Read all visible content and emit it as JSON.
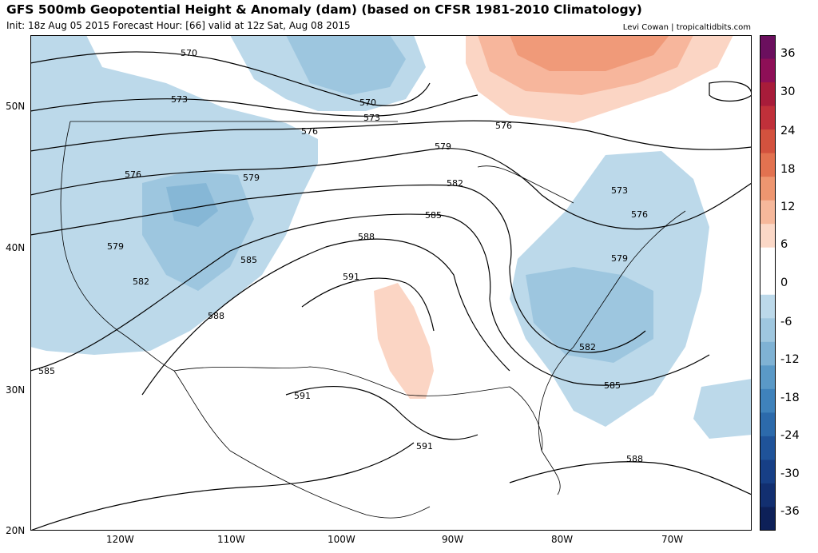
{
  "header": {
    "title": "GFS 500mb Geopotential Height & Anomaly (dam) (based on CFSR 1981-2010 Climatology)",
    "subtitle": "Init: 18z Aug 05 2015   Forecast Hour: [66]   valid at 12z Sat, Aug 08 2015",
    "credit": "Levi Cowan | tropicaltidbits.com"
  },
  "map": {
    "lat_labels": [
      "50N",
      "40N",
      "30N",
      "20N"
    ],
    "lon_labels": [
      "120W",
      "110W",
      "100W",
      "90W",
      "80W",
      "70W"
    ],
    "contour_labels": [
      {
        "text": "570"
      },
      {
        "text": "570"
      },
      {
        "text": "573"
      },
      {
        "text": "573"
      },
      {
        "text": "573"
      },
      {
        "text": "576"
      },
      {
        "text": "576"
      },
      {
        "text": "576"
      },
      {
        "text": "576"
      },
      {
        "text": "579"
      },
      {
        "text": "579"
      },
      {
        "text": "579"
      },
      {
        "text": "579"
      },
      {
        "text": "582"
      },
      {
        "text": "582"
      },
      {
        "text": "582"
      },
      {
        "text": "585"
      },
      {
        "text": "585"
      },
      {
        "text": "585"
      },
      {
        "text": "585"
      },
      {
        "text": "588"
      },
      {
        "text": "588"
      },
      {
        "text": "588"
      },
      {
        "text": "591"
      },
      {
        "text": "591"
      },
      {
        "text": "591"
      }
    ],
    "anomaly_colors": {
      "neg1": "#bcd9ea",
      "neg2": "#9dc6df",
      "neg3": "#86b7d6",
      "pos1": "#fbd5c4",
      "pos2": "#f7b69c",
      "pos3": "#f09a79"
    }
  },
  "colorbar": {
    "labels": [
      "36",
      "30",
      "24",
      "18",
      "12",
      "6",
      "0",
      "-6",
      "-12",
      "-18",
      "-24",
      "-30",
      "-36"
    ],
    "colors": [
      "#6b0f5e",
      "#8e0f57",
      "#a81c3a",
      "#c0303a",
      "#d3523e",
      "#e27250",
      "#ee9670",
      "#f6b89b",
      "#fbd8c7",
      "#ffffff",
      "#ffffff",
      "#bcd9ea",
      "#9fc7df",
      "#7fb2d4",
      "#5a99c7",
      "#3f82bb",
      "#2c6aab",
      "#1f5399",
      "#173f86",
      "#122f70",
      "#0d2058"
    ]
  }
}
